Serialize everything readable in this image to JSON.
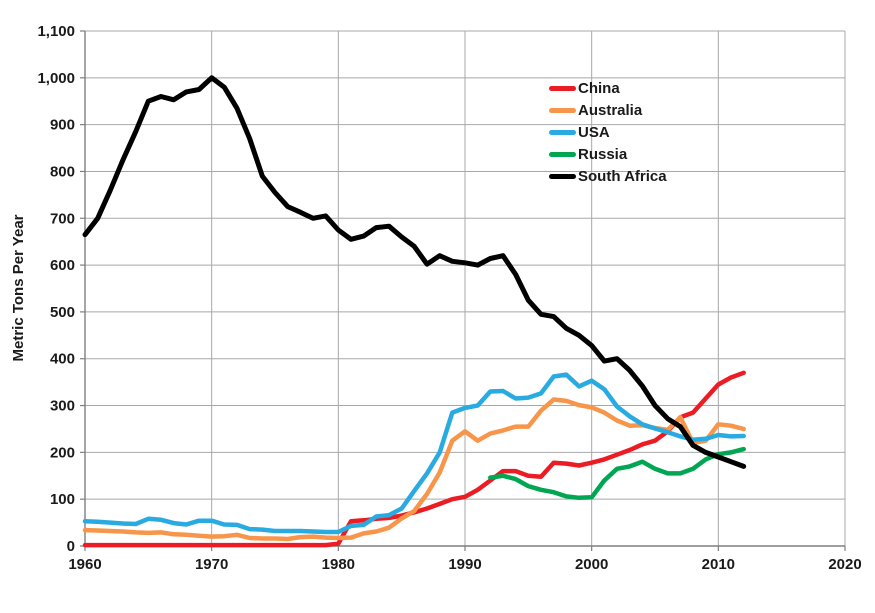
{
  "chart_data": {
    "type": "line",
    "title": "",
    "xlabel": "",
    "ylabel": "Metric Tons Per Year",
    "xlim": [
      1960,
      2020
    ],
    "ylim": [
      0,
      1100
    ],
    "x_ticks": [
      1960,
      1970,
      1980,
      1990,
      2000,
      2010,
      2020
    ],
    "y_tick_step": 100,
    "grid": true,
    "legend_position": "upper-right-inside",
    "x": [
      1960,
      1961,
      1962,
      1963,
      1964,
      1965,
      1966,
      1967,
      1968,
      1969,
      1970,
      1971,
      1972,
      1973,
      1974,
      1975,
      1976,
      1977,
      1978,
      1979,
      1980,
      1981,
      1982,
      1983,
      1984,
      1985,
      1986,
      1987,
      1988,
      1989,
      1990,
      1991,
      1992,
      1993,
      1994,
      1995,
      1996,
      1997,
      1998,
      1999,
      2000,
      2001,
      2002,
      2003,
      2004,
      2005,
      2006,
      2007,
      2008,
      2009,
      2010,
      2011,
      2012
    ],
    "series": [
      {
        "name": "China",
        "color": "#EC1C24",
        "values": [
          2,
          2,
          2,
          2,
          2,
          2,
          2,
          2,
          2,
          2,
          2,
          2,
          2,
          2,
          2,
          2,
          2,
          2,
          2,
          2,
          5,
          53,
          55,
          58,
          60,
          65,
          72,
          80,
          90,
          100,
          105,
          120,
          140,
          160,
          160,
          150,
          148,
          178,
          176,
          172,
          178,
          185,
          195,
          205,
          217,
          225,
          245,
          275,
          285,
          315,
          345,
          360,
          370
        ]
      },
      {
        "name": "Australia",
        "color": "#F7964A",
        "values": [
          34,
          33,
          32,
          31,
          29,
          28,
          29,
          25,
          24,
          22,
          20,
          21,
          24,
          17,
          16,
          16,
          15,
          19,
          20,
          18,
          17,
          18,
          27,
          31,
          39,
          59,
          75,
          111,
          157,
          225,
          245,
          225,
          240,
          247,
          255,
          255,
          289,
          313,
          310,
          301,
          296,
          285,
          268,
          257,
          258,
          252,
          248,
          275,
          220,
          225,
          260,
          257,
          250
        ]
      },
      {
        "name": "USA",
        "color": "#29ABE2",
        "values": [
          53,
          52,
          50,
          48,
          47,
          58,
          56,
          49,
          46,
          54,
          54,
          46,
          45,
          36,
          35,
          32,
          32,
          32,
          31,
          30,
          30,
          43,
          45,
          63,
          66,
          80,
          118,
          155,
          200,
          285,
          295,
          300,
          330,
          331,
          315,
          317,
          326,
          362,
          366,
          341,
          353,
          335,
          298,
          277,
          260,
          251,
          243,
          234,
          227,
          229,
          237,
          234,
          235
        ]
      },
      {
        "name": "Russia",
        "color": "#00A651",
        "values": [
          null,
          null,
          null,
          null,
          null,
          null,
          null,
          null,
          null,
          null,
          null,
          null,
          null,
          null,
          null,
          null,
          null,
          null,
          null,
          null,
          null,
          null,
          null,
          null,
          null,
          null,
          null,
          null,
          null,
          null,
          null,
          null,
          146,
          150,
          143,
          128,
          120,
          115,
          106,
          103,
          104,
          140,
          165,
          170,
          180,
          165,
          155,
          155,
          165,
          185,
          196,
          200,
          207
        ]
      },
      {
        "name": "South Africa",
        "color": "#000000",
        "values": [
          665,
          700,
          760,
          825,
          885,
          950,
          960,
          953,
          970,
          975,
          1000,
          980,
          935,
          870,
          790,
          755,
          725,
          713,
          700,
          705,
          675,
          655,
          662,
          680,
          683,
          660,
          640,
          602,
          620,
          608,
          605,
          600,
          614,
          620,
          580,
          525,
          495,
          490,
          465,
          450,
          428,
          395,
          400,
          375,
          342,
          300,
          272,
          255,
          215,
          200,
          190,
          180,
          170
        ]
      }
    ]
  },
  "colors": {
    "background": "#FFFFFF",
    "grid": "#A8A8A8",
    "axis": "#7F7F7F",
    "text": "#1A1A1A"
  }
}
